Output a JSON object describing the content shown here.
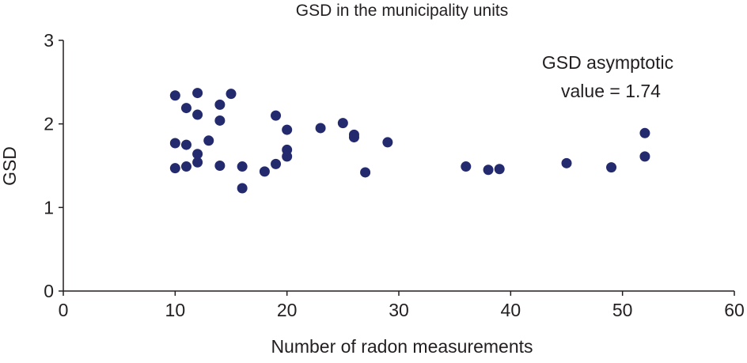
{
  "chart_data": {
    "type": "scatter",
    "title": "GSD in the municipality units",
    "xlabel": "Number of radon measurements",
    "ylabel": "GSD",
    "xlim": [
      0,
      60
    ],
    "ylim": [
      0,
      3
    ],
    "xticks": [
      0,
      10,
      20,
      30,
      40,
      50,
      60
    ],
    "yticks": [
      0,
      1,
      2,
      3
    ],
    "grid": false,
    "annotation": [
      "GSD asymptotic",
      "value = 1.74"
    ],
    "marker_color": "#232a6e",
    "points": [
      [
        10,
        2.34
      ],
      [
        12,
        2.37
      ],
      [
        15,
        2.36
      ],
      [
        11,
        2.19
      ],
      [
        14,
        2.23
      ],
      [
        12,
        2.11
      ],
      [
        14,
        2.04
      ],
      [
        19,
        2.1
      ],
      [
        20,
        1.93
      ],
      [
        23,
        1.95
      ],
      [
        25,
        2.01
      ],
      [
        26,
        1.87
      ],
      [
        26,
        1.84
      ],
      [
        29,
        1.78
      ],
      [
        10,
        1.77
      ],
      [
        11,
        1.75
      ],
      [
        13,
        1.8
      ],
      [
        12,
        1.64
      ],
      [
        12,
        1.54
      ],
      [
        10,
        1.47
      ],
      [
        11,
        1.49
      ],
      [
        14,
        1.5
      ],
      [
        16,
        1.49
      ],
      [
        16,
        1.23
      ],
      [
        18,
        1.43
      ],
      [
        19,
        1.52
      ],
      [
        20,
        1.69
      ],
      [
        20,
        1.61
      ],
      [
        27,
        1.42
      ],
      [
        36,
        1.49
      ],
      [
        38,
        1.45
      ],
      [
        39,
        1.46
      ],
      [
        45,
        1.53
      ],
      [
        49,
        1.48
      ],
      [
        52,
        1.89
      ],
      [
        52,
        1.61
      ]
    ]
  }
}
